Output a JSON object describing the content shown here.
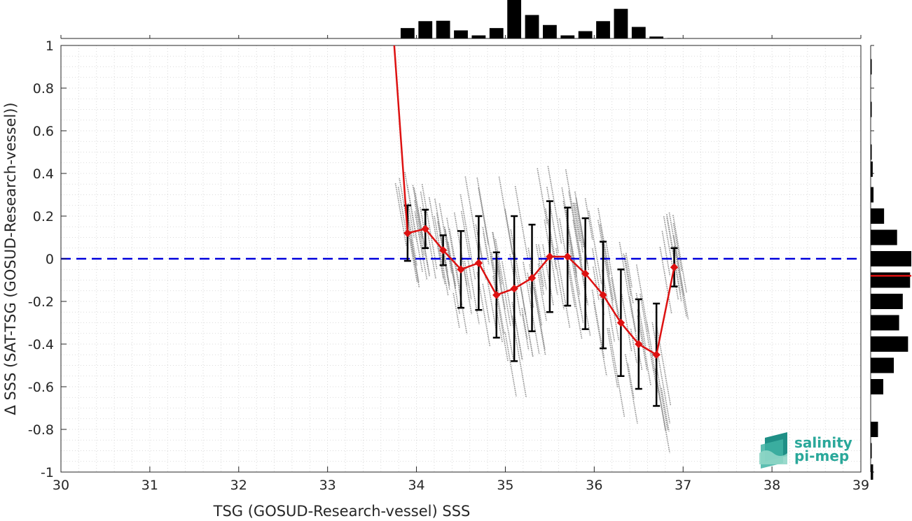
{
  "chart_data": {
    "type": "scatter",
    "xlabel": "TSG (GOSUD-Research-vessel) SSS",
    "ylabel": "Δ SSS (SAT-TSG (GOSUD-Research-vessel))",
    "xlim": [
      30,
      39
    ],
    "ylim": [
      -1,
      1
    ],
    "x_ticks": [
      30,
      31,
      32,
      33,
      34,
      35,
      36,
      37,
      38,
      39
    ],
    "y_ticks": [
      -1,
      -0.8,
      -0.6,
      -0.4,
      -0.2,
      0,
      0.2,
      0.4,
      0.6,
      0.8,
      1
    ],
    "grid": true,
    "reference_line": {
      "y": 0,
      "style": "dashed",
      "color": "#0000dd"
    },
    "binned_mean": {
      "color": "#dd1111",
      "x": [
        33.9,
        34.1,
        34.3,
        34.5,
        34.7,
        34.9,
        35.1,
        35.3,
        35.5,
        35.7,
        35.9,
        36.1,
        36.3,
        36.5,
        36.7,
        36.9
      ],
      "y": [
        0.12,
        0.14,
        0.04,
        -0.05,
        -0.02,
        -0.17,
        -0.14,
        -0.09,
        0.01,
        0.01,
        -0.07,
        -0.17,
        -0.3,
        -0.4,
        -0.45,
        -0.04
      ],
      "std": [
        0.13,
        0.09,
        0.07,
        0.18,
        0.22,
        0.2,
        0.34,
        0.25,
        0.26,
        0.23,
        0.26,
        0.25,
        0.25,
        0.21,
        0.24,
        0.09
      ],
      "line_start": {
        "x": 33.75,
        "y": 1.0
      }
    },
    "scatter_color": "#8c8c8c",
    "top_histogram": {
      "bin_centers": [
        33.9,
        34.1,
        34.3,
        34.5,
        34.7,
        34.9,
        35.1,
        35.3,
        35.5,
        35.7,
        35.9,
        36.1,
        36.3,
        36.5,
        36.7,
        36.9
      ],
      "values": [
        0.27,
        0.45,
        0.46,
        0.21,
        0.08,
        0.27,
        1.0,
        0.61,
        0.35,
        0.08,
        0.19,
        0.45,
        0.77,
        0.3,
        0.05,
        0.01
      ]
    },
    "right_histogram": {
      "bin_centers": [
        0.9,
        0.7,
        0.5,
        0.42,
        0.3,
        0.2,
        0.1,
        0.0,
        -0.1,
        -0.2,
        -0.3,
        -0.4,
        -0.5,
        -0.6,
        -0.8,
        -0.9,
        -1.0
      ],
      "values": [
        0.02,
        0.02,
        0.02,
        0.05,
        0.07,
        0.33,
        0.65,
        1.0,
        0.97,
        0.79,
        0.7,
        0.92,
        0.57,
        0.31,
        0.18,
        0.02,
        0.06
      ],
      "mean_line_y": -0.08
    }
  },
  "logo": {
    "line1": "salinity",
    "line2": "pi-mep"
  }
}
